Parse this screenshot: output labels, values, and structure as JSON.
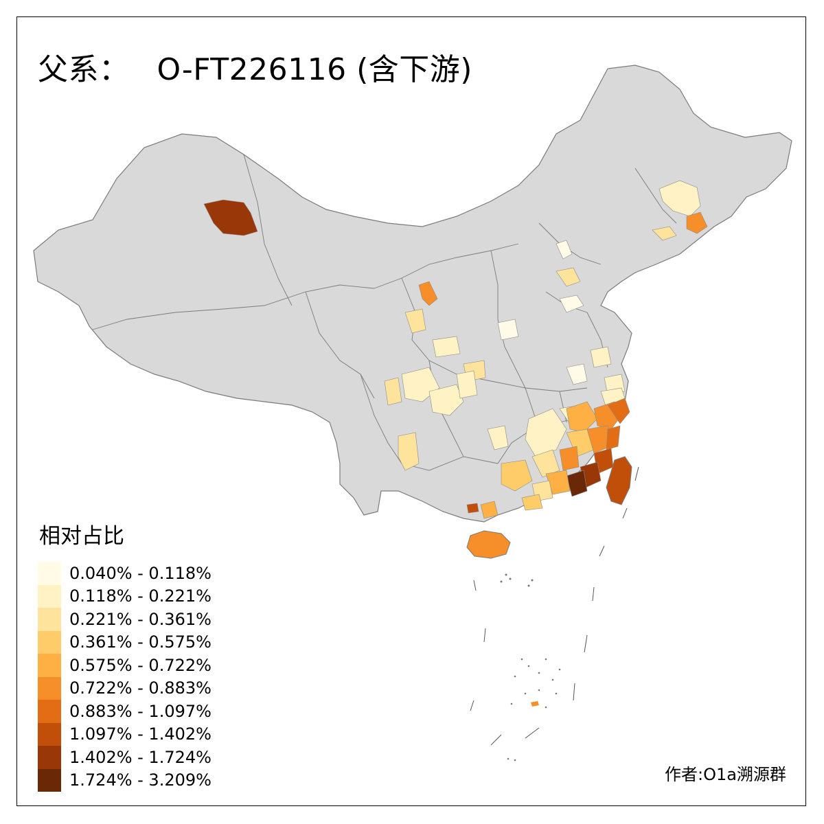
{
  "title": {
    "prefix": "父系：",
    "code": "O-FT226116 (含下游)"
  },
  "legend": {
    "title": "相对占比",
    "items": [
      {
        "label": "0.040% - 0.118%",
        "color": "#fffbe6"
      },
      {
        "label": "0.118% - 0.221%",
        "color": "#fff2c4"
      },
      {
        "label": "0.221% - 0.361%",
        "color": "#fee39c"
      },
      {
        "label": "0.361% - 0.575%",
        "color": "#fecd6a"
      },
      {
        "label": "0.575% - 0.722%",
        "color": "#feb044"
      },
      {
        "label": "0.722% - 0.883%",
        "color": "#f68f29"
      },
      {
        "label": "0.883% - 1.097%",
        "color": "#e36d14"
      },
      {
        "label": "1.097% - 1.402%",
        "color": "#c24f09"
      },
      {
        "label": "1.402% - 1.724%",
        "color": "#993708"
      },
      {
        "label": "1.724% - 3.209%",
        "color": "#6b2806"
      }
    ]
  },
  "credit": "作者:O1a溯源群",
  "map": {
    "base_color": "#d9d9d9",
    "border_color": "#7a7a7a"
  }
}
